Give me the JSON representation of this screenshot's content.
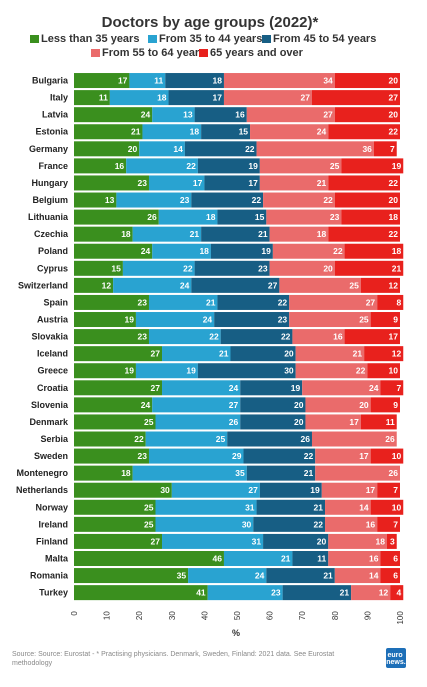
{
  "chart_data": {
    "type": "bar",
    "orientation": "horizontal-stacked",
    "title": "Doctors by age groups (2022)*",
    "xlabel": "%",
    "ylabel": "",
    "xlim": [
      0,
      100
    ],
    "xticks": [
      "0",
      "10",
      "20",
      "30",
      "40",
      "50",
      "60",
      "70",
      "80",
      "90",
      "100"
    ],
    "categories": [
      "Bulgaria",
      "Italy",
      "Latvia",
      "Estonia",
      "Germany",
      "France",
      "Hungary",
      "Belgium",
      "Lithuania",
      "Czechia",
      "Poland",
      "Cyprus",
      "Switzerland",
      "Spain",
      "Austria",
      "Slovakia",
      "Iceland",
      "Greece",
      "Croatia",
      "Slovenia",
      "Denmark",
      "Serbia",
      "Sweden",
      "Montenegro",
      "Netherlands",
      "Norway",
      "Ireland",
      "Finland",
      "Malta",
      "Romania",
      "Turkey"
    ],
    "series": [
      {
        "name": "Less than 35 years",
        "color": "#3a8f1e",
        "values": [
          17,
          11,
          24,
          21,
          20,
          16,
          23,
          13,
          26,
          18,
          24,
          15,
          12,
          23,
          19,
          23,
          27,
          19,
          27,
          24,
          25,
          22,
          23,
          18,
          30,
          25,
          25,
          27,
          46,
          35,
          41
        ]
      },
      {
        "name": "From 35 to 44 years",
        "color": "#29a3d1",
        "values": [
          11,
          18,
          13,
          18,
          14,
          22,
          17,
          23,
          18,
          21,
          18,
          22,
          24,
          21,
          24,
          22,
          21,
          19,
          24,
          27,
          26,
          25,
          29,
          35,
          27,
          31,
          30,
          31,
          21,
          24,
          23
        ]
      },
      {
        "name": "From 45 to 54 years",
        "color": "#175e84",
        "values": [
          18,
          17,
          16,
          15,
          22,
          19,
          17,
          22,
          15,
          21,
          19,
          23,
          27,
          22,
          23,
          22,
          20,
          30,
          19,
          20,
          20,
          26,
          22,
          21,
          19,
          21,
          22,
          20,
          11,
          21,
          21
        ]
      },
      {
        "name": "From 55 to 64 years",
        "color": "#ea6b6b",
        "values": [
          34,
          27,
          27,
          24,
          36,
          25,
          21,
          22,
          23,
          18,
          22,
          20,
          25,
          27,
          25,
          16,
          21,
          22,
          24,
          20,
          17,
          26,
          17,
          26,
          17,
          14,
          16,
          18,
          16,
          14,
          12
        ]
      },
      {
        "name": "65 years and over",
        "color": "#e8211d",
        "values": [
          20,
          27,
          20,
          22,
          7,
          19,
          22,
          20,
          18,
          22,
          18,
          21,
          12,
          8,
          9,
          17,
          12,
          10,
          7,
          9,
          11,
          0,
          10,
          0,
          7,
          10,
          7,
          3,
          6,
          6,
          4
        ]
      }
    ],
    "legend_position": "top",
    "grid": false,
    "data_labels": true,
    "source": "Source: Source: Eurostat - * Practising physicians. Denmark, Sweden, Finland: 2021 data. See Eurostat methodology",
    "logo": "euro news."
  }
}
